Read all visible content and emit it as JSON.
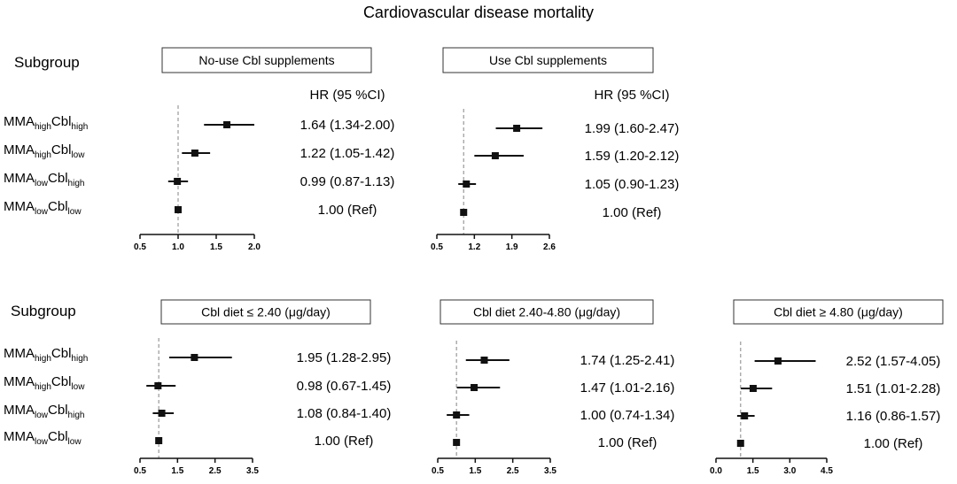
{
  "title": "Cardiovascular disease mortality",
  "subgroup_label": "Subgroup",
  "hr_header": "HR (95 %CI)",
  "row_labels": [
    {
      "base1": "MMA",
      "sub1": "high",
      "base2": "Cbl",
      "sub2": "high"
    },
    {
      "base1": "MMA",
      "sub1": "high",
      "base2": "Cbl",
      "sub2": "low"
    },
    {
      "base1": "MMA",
      "sub1": "low",
      "base2": "Cbl",
      "sub2": "high"
    },
    {
      "base1": "MMA",
      "sub1": "low",
      "base2": "Cbl",
      "sub2": "low"
    }
  ],
  "chart_data": [
    {
      "type": "forest",
      "title": "No-use Cbl supplements",
      "ref_line": 1.0,
      "xlim": [
        0.5,
        2.0
      ],
      "ticks": [
        0.5,
        1.0,
        1.5,
        2.0
      ],
      "tick_labels": [
        "0.5",
        "1.0",
        "1.5",
        "2.0"
      ],
      "rows": [
        {
          "hr": 1.64,
          "lo": 1.34,
          "hi": 2.0,
          "text": "1.64 (1.34-2.00)"
        },
        {
          "hr": 1.22,
          "lo": 1.05,
          "hi": 1.42,
          "text": "1.22 (1.05-1.42)"
        },
        {
          "hr": 0.99,
          "lo": 0.87,
          "hi": 1.13,
          "text": "0.99 (0.87-1.13)"
        },
        {
          "hr": 1.0,
          "lo": 1.0,
          "hi": 1.0,
          "text": "1.00 (Ref)"
        }
      ]
    },
    {
      "type": "forest",
      "title": "Use Cbl supplements",
      "ref_line": 1.0,
      "xlim": [
        0.5,
        2.6
      ],
      "ticks": [
        0.5,
        1.2,
        1.9,
        2.6
      ],
      "tick_labels": [
        "0.5",
        "1.2",
        "1.9",
        "2.6"
      ],
      "rows": [
        {
          "hr": 1.99,
          "lo": 1.6,
          "hi": 2.47,
          "text": "1.99 (1.60-2.47)"
        },
        {
          "hr": 1.59,
          "lo": 1.2,
          "hi": 2.12,
          "text": "1.59 (1.20-2.12)"
        },
        {
          "hr": 1.05,
          "lo": 0.9,
          "hi": 1.23,
          "text": "1.05 (0.90-1.23)"
        },
        {
          "hr": 1.0,
          "lo": 1.0,
          "hi": 1.0,
          "text": "1.00 (Ref)"
        }
      ]
    },
    {
      "type": "forest",
      "title": "Cbl diet  ≤ 2.40 (μg/day)",
      "ref_line": 1.0,
      "xlim": [
        0.5,
        3.5
      ],
      "ticks": [
        0.5,
        1.5,
        2.5,
        3.5
      ],
      "tick_labels": [
        "0.5",
        "1.5",
        "2.5",
        "3.5"
      ],
      "rows": [
        {
          "hr": 1.95,
          "lo": 1.28,
          "hi": 2.95,
          "text": "1.95 (1.28-2.95)"
        },
        {
          "hr": 0.98,
          "lo": 0.67,
          "hi": 1.45,
          "text": "0.98 (0.67-1.45)"
        },
        {
          "hr": 1.08,
          "lo": 0.84,
          "hi": 1.4,
          "text": "1.08 (0.84-1.40)"
        },
        {
          "hr": 1.0,
          "lo": 1.0,
          "hi": 1.0,
          "text": "1.00 (Ref)"
        }
      ]
    },
    {
      "type": "forest",
      "title": "Cbl diet 2.40-4.80 (μg/day)",
      "ref_line": 1.0,
      "xlim": [
        0.5,
        3.5
      ],
      "ticks": [
        0.5,
        1.5,
        2.5,
        3.5
      ],
      "tick_labels": [
        "0.5",
        "1.5",
        "2.5",
        "3.5"
      ],
      "rows": [
        {
          "hr": 1.74,
          "lo": 1.25,
          "hi": 2.41,
          "text": "1.74 (1.25-2.41)"
        },
        {
          "hr": 1.47,
          "lo": 1.01,
          "hi": 2.16,
          "text": "1.47 (1.01-2.16)"
        },
        {
          "hr": 1.0,
          "lo": 0.74,
          "hi": 1.34,
          "text": "1.00 (0.74-1.34)"
        },
        {
          "hr": 1.0,
          "lo": 1.0,
          "hi": 1.0,
          "text": "1.00 (Ref)"
        }
      ]
    },
    {
      "type": "forest",
      "title": "Cbl diet ≥ 4.80 (μg/day)",
      "ref_line": 1.0,
      "xlim": [
        0.0,
        4.5
      ],
      "ticks": [
        0.0,
        1.5,
        3.0,
        4.5
      ],
      "tick_labels": [
        "0.0",
        "1.5",
        "3.0",
        "4.5"
      ],
      "rows": [
        {
          "hr": 2.52,
          "lo": 1.57,
          "hi": 4.05,
          "text": "2.52 (1.57-4.05)"
        },
        {
          "hr": 1.51,
          "lo": 1.01,
          "hi": 2.28,
          "text": "1.51 (1.01-2.28)"
        },
        {
          "hr": 1.16,
          "lo": 0.86,
          "hi": 1.57,
          "text": "1.16 (0.86-1.57)"
        },
        {
          "hr": 1.0,
          "lo": 1.0,
          "hi": 1.0,
          "text": "1.00 (Ref)"
        }
      ]
    }
  ]
}
